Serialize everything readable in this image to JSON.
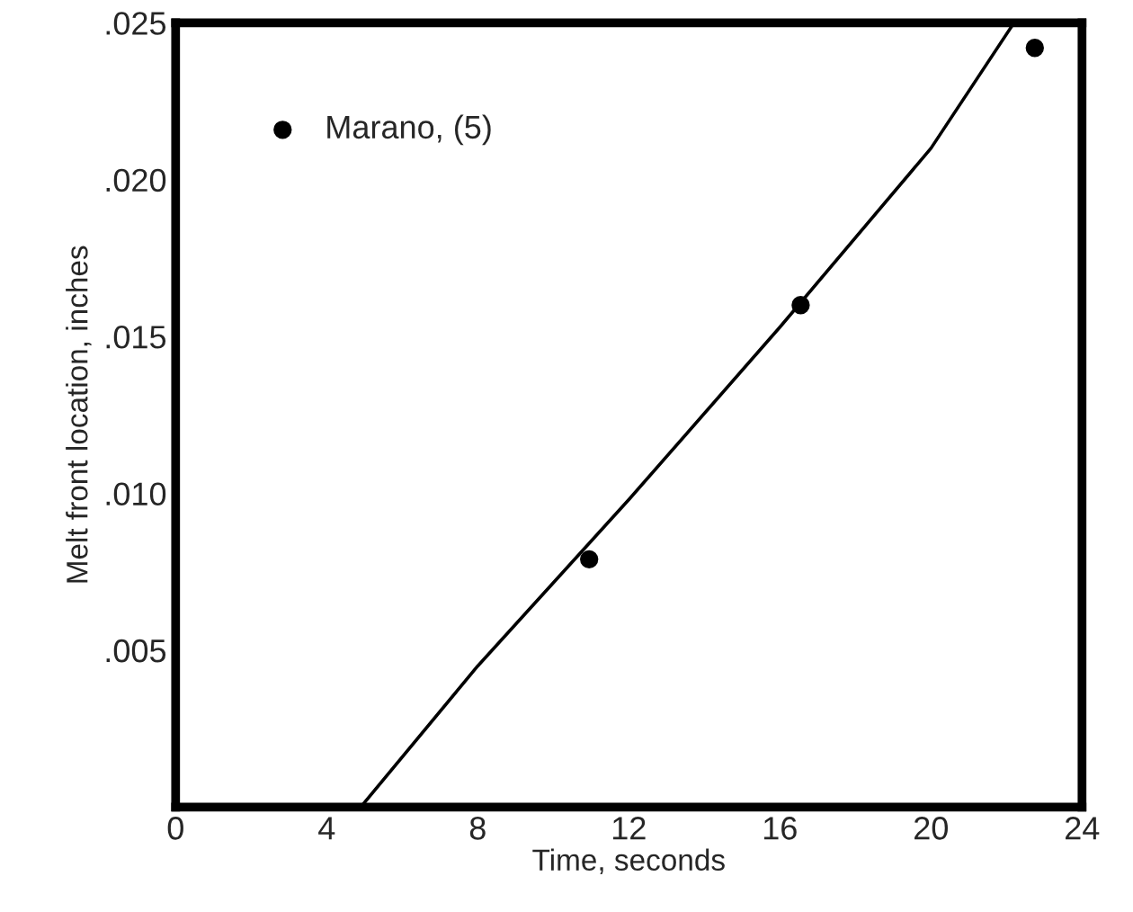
{
  "chart_data": {
    "type": "scatter",
    "xlabel": "Time, seconds",
    "ylabel": "Melt front location, inches",
    "xlim": [
      0,
      24
    ],
    "ylim": [
      0,
      0.025
    ],
    "xticks": [
      0,
      4,
      8,
      12,
      16,
      20,
      24
    ],
    "yticks": [
      {
        "value": 0.005,
        "label": ".005"
      },
      {
        "value": 0.01,
        "label": ".010"
      },
      {
        "value": 0.015,
        "label": ".015"
      },
      {
        "value": 0.02,
        "label": ".020"
      },
      {
        "value": 0.025,
        "label": ".025"
      }
    ],
    "legend": "top left",
    "series": [
      {
        "name": "Marano, (5)",
        "color": "#000000",
        "marker": "circle",
        "x": [
          10.95,
          16.55,
          22.75
        ],
        "values": [
          0.0079,
          0.016,
          0.0242
        ]
      },
      {
        "type": "line",
        "color": "#000000",
        "x": [
          4.9,
          8,
          12,
          16,
          20,
          22.2
        ],
        "values": [
          0,
          0.0045,
          0.0098,
          0.0153,
          0.021,
          0.025
        ]
      }
    ]
  }
}
